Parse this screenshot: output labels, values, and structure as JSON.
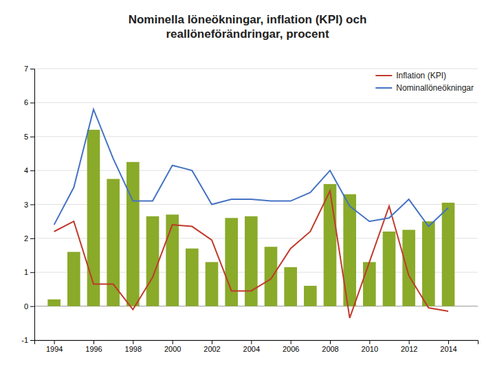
{
  "chart_data": {
    "type": "bar",
    "title": "Nominella löneökningar, inflation (KPI) och\nreallöneförändringar, procent",
    "x": [
      1994,
      1995,
      1996,
      1997,
      1998,
      1999,
      2000,
      2001,
      2002,
      2003,
      2004,
      2005,
      2006,
      2007,
      2008,
      2009,
      2010,
      2011,
      2012,
      2013,
      2014
    ],
    "xlim": [
      1993.0,
      2015.5
    ],
    "xticks": [
      1994,
      1996,
      1998,
      2000,
      2002,
      2004,
      2006,
      2008,
      2010,
      2012,
      2014
    ],
    "ylim": [
      -1,
      7
    ],
    "yticks": [
      -1,
      0,
      1,
      2,
      3,
      4,
      5,
      6,
      7
    ],
    "grid": true,
    "legend": "upper-right",
    "series": [
      {
        "type": "bar",
        "color": "#8aaa2a",
        "values": [
          0.2,
          1.6,
          5.2,
          3.75,
          4.25,
          2.65,
          2.7,
          1.7,
          1.3,
          2.6,
          2.65,
          1.75,
          1.15,
          0.6,
          3.6,
          3.3,
          1.3,
          2.2,
          2.25,
          2.5,
          3.05
        ]
      },
      {
        "name": "Inflation (KPI)",
        "type": "line",
        "color": "#c0392b",
        "values": [
          2.2,
          2.5,
          0.65,
          0.65,
          -0.1,
          0.85,
          2.4,
          2.35,
          1.95,
          0.45,
          0.45,
          0.8,
          1.7,
          2.2,
          3.4,
          -0.35,
          1.3,
          2.95,
          0.9,
          -0.05,
          -0.15
        ]
      },
      {
        "name": "Nominallöneökningar",
        "type": "line",
        "color": "#4472c4",
        "values": [
          2.4,
          3.5,
          5.8,
          4.35,
          3.1,
          3.1,
          4.15,
          4.0,
          3.0,
          3.15,
          3.15,
          3.1,
          3.1,
          3.35,
          4.0,
          2.95,
          2.5,
          2.6,
          3.15,
          2.35,
          2.9
        ]
      }
    ]
  }
}
